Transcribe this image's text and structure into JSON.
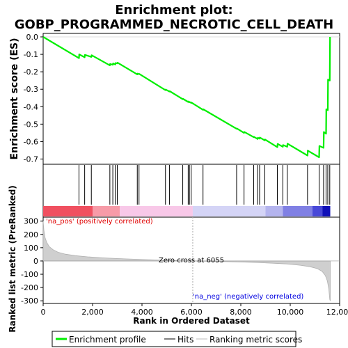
{
  "chart_data": [
    {
      "panel": "enrichment-score",
      "type": "line",
      "title": "Enrichment plot:\nGOBP_PROGRAMMED_NECROTIC_CELL_DEATH",
      "title_lines": [
        "Enrichment plot:",
        "GOBP_PROGRAMMED_NECROTIC_CELL_DEATH"
      ],
      "ylabel": "Enrichment score (ES)",
      "ylim": [
        -0.73,
        0.02
      ],
      "yticks": [
        0.0,
        -0.1,
        -0.2,
        -0.3,
        -0.4,
        -0.5,
        -0.6,
        -0.7
      ],
      "ytick_labels": [
        "0.0",
        "-0.1",
        "-0.2",
        "-0.3",
        "-0.4",
        "-0.5",
        "-0.6",
        "-0.7"
      ],
      "color": "#00ee00",
      "x": [
        0,
        1450,
        1460,
        1680,
        1690,
        1950,
        1960,
        2700,
        2710,
        2820,
        2830,
        2920,
        2930,
        3000,
        3010,
        3810,
        3820,
        3880,
        3890,
        4950,
        4960,
        5110,
        5120,
        5650,
        5660,
        5870,
        5880,
        5920,
        5930,
        5990,
        6000,
        6470,
        6480,
        7830,
        7840,
        8130,
        8140,
        8520,
        8530,
        8680,
        8690,
        8760,
        8770,
        8970,
        8980,
        9480,
        9490,
        9700,
        9710,
        9880,
        9890,
        10700,
        10710,
        11170,
        11180,
        11350,
        11360,
        11450,
        11460,
        11520,
        11530,
        11600,
        11610
      ],
      "y": [
        0,
        -0.122,
        -0.1,
        -0.117,
        -0.103,
        -0.115,
        -0.105,
        -0.163,
        -0.155,
        -0.16,
        -0.152,
        -0.158,
        -0.15,
        -0.152,
        -0.148,
        -0.215,
        -0.21,
        -0.213,
        -0.212,
        -0.305,
        -0.302,
        -0.313,
        -0.311,
        -0.357,
        -0.355,
        -0.373,
        -0.37,
        -0.375,
        -0.373,
        -0.378,
        -0.376,
        -0.418,
        -0.415,
        -0.527,
        -0.525,
        -0.55,
        -0.545,
        -0.575,
        -0.573,
        -0.585,
        -0.578,
        -0.583,
        -0.577,
        -0.593,
        -0.588,
        -0.632,
        -0.613,
        -0.63,
        -0.62,
        -0.63,
        -0.612,
        -0.68,
        -0.652,
        -0.69,
        -0.625,
        -0.636,
        -0.545,
        -0.555,
        -0.415,
        -0.42,
        -0.245,
        -0.25,
        0.0
      ],
      "legend": [
        "Enrichment profile",
        "Hits",
        "Ranking metric scores"
      ]
    },
    {
      "panel": "hits",
      "type": "rug",
      "hit_ranks": [
        1450,
        1680,
        1950,
        2700,
        2820,
        2920,
        3000,
        3810,
        3880,
        4950,
        5110,
        5650,
        5870,
        5920,
        5990,
        6470,
        7830,
        8130,
        8520,
        8680,
        8760,
        8970,
        9480,
        9700,
        9880,
        10700,
        11170,
        11350,
        11450,
        11520,
        11600
      ],
      "heatmap_segments": [
        {
          "start": 0,
          "end": 2000,
          "color": "#f05060"
        },
        {
          "start": 2000,
          "end": 3100,
          "color": "#f79ba8"
        },
        {
          "start": 3100,
          "end": 6055,
          "color": "#f8c8e8"
        },
        {
          "start": 6055,
          "end": 9000,
          "color": "#d4d4f6"
        },
        {
          "start": 9000,
          "end": 9700,
          "color": "#b4b4ee"
        },
        {
          "start": 9700,
          "end": 10900,
          "color": "#8080e4"
        },
        {
          "start": 10900,
          "end": 11300,
          "color": "#4848d8"
        },
        {
          "start": 11300,
          "end": 11620,
          "color": "#1010b8"
        }
      ]
    },
    {
      "panel": "ranked-list",
      "type": "area",
      "xlabel": "Rank in Ordered Dataset",
      "ylabel": "Ranked list metric (PreRanked)",
      "xlim": [
        0,
        12000
      ],
      "ylim": [
        -320,
        330
      ],
      "xticks": [
        0,
        2000,
        4000,
        6000,
        8000,
        10000,
        12000
      ],
      "xtick_labels": [
        "0",
        "2,000",
        "4,000",
        "6,000",
        "8,000",
        "10,000",
        "12,000"
      ],
      "yticks": [
        300,
        200,
        100,
        0,
        -100,
        -200,
        -300
      ],
      "ytick_labels": [
        "300",
        "200",
        "100",
        "0",
        "-100",
        "-200",
        "-300"
      ],
      "x": [
        0,
        30,
        80,
        150,
        250,
        400,
        600,
        900,
        1300,
        1800,
        2500,
        3300,
        4200,
        5000,
        5600,
        6055,
        6600,
        7300,
        8000,
        8700,
        9300,
        9900,
        10400,
        10800,
        11100,
        11300,
        11420,
        11500,
        11560,
        11600,
        11620
      ],
      "values": [
        300,
        230,
        175,
        138,
        108,
        85,
        66,
        51,
        40,
        31,
        23,
        16,
        10,
        5,
        2,
        0,
        -2,
        -5,
        -8,
        -12,
        -17,
        -23,
        -32,
        -43,
        -58,
        -80,
        -110,
        -150,
        -210,
        -290,
        -300
      ],
      "zero_cross_label": "Zero cross at 6055",
      "zero_cross": 6055,
      "pos_label": "'na_pos' (positively correlated)",
      "neg_label": "'na_neg' (negatively correlated)"
    }
  ]
}
